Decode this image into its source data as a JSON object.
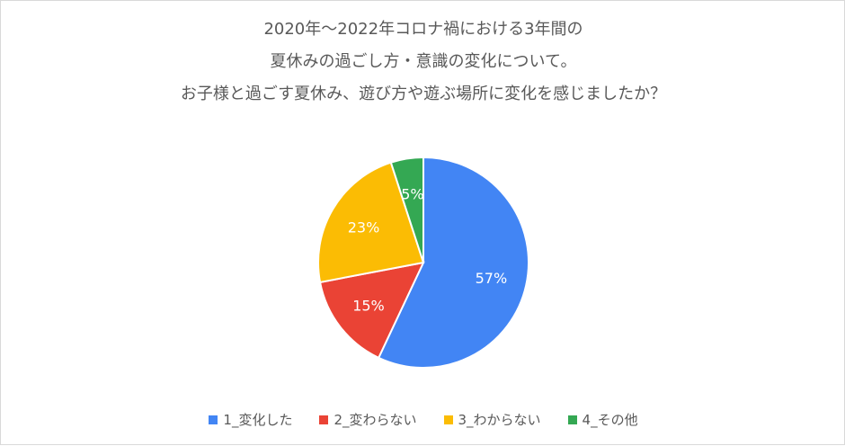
{
  "chart_data": {
    "type": "pie",
    "title_lines": [
      "2020年～2022年コロナ禍における3年間の",
      "夏休みの過ごし方・意識の変化について。",
      "お子様と過ごす夏休み、遊び方や遊ぶ場所に変化を感じましたか？"
    ],
    "categories": [
      "1_変化した",
      "2_変わらない",
      "3_わからない",
      "4_その他"
    ],
    "values": [
      57,
      15,
      23,
      5
    ],
    "labels": [
      "57%",
      "15%",
      "23%",
      "5%"
    ],
    "colors": [
      "#4285f4",
      "#ea4335",
      "#fbbc04",
      "#34a853"
    ],
    "legend_position": "bottom",
    "start_angle": "12 o'clock",
    "direction": "clockwise"
  }
}
